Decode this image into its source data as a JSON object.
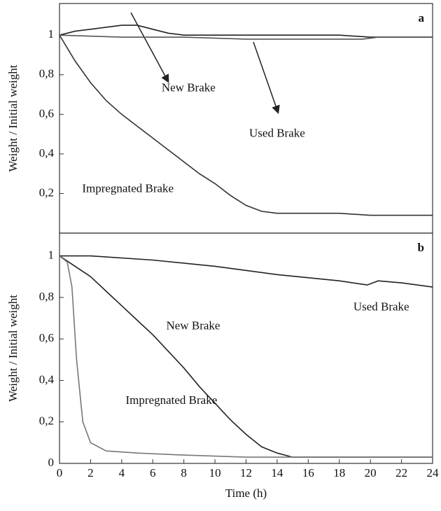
{
  "chart_data": [
    {
      "type": "line",
      "panel": "a",
      "ylabel": "Weight / Initial weight",
      "xlim": [
        0,
        24
      ],
      "ylim": [
        0,
        1.16
      ],
      "yticks": [
        {
          "value": 0.2,
          "label": "0,2"
        },
        {
          "value": 0.4,
          "label": "0,4"
        },
        {
          "value": 0.6,
          "label": "0,6"
        },
        {
          "value": 0.8,
          "label": "0,8"
        },
        1
      ],
      "series": [
        {
          "name": "New Brake",
          "color": "#222222",
          "x": [
            0,
            1,
            2,
            3,
            4,
            5,
            6,
            7,
            8,
            10,
            12,
            14,
            16,
            18,
            20,
            22,
            24
          ],
          "values": [
            1.0,
            1.02,
            1.03,
            1.04,
            1.05,
            1.05,
            1.03,
            1.01,
            1.0,
            1.0,
            1.0,
            1.0,
            1.0,
            1.0,
            0.99,
            0.99,
            0.99
          ]
        },
        {
          "name": "Used Brake",
          "color": "#555555",
          "x": [
            0,
            4,
            8,
            12,
            16,
            19.5,
            20.5,
            24
          ],
          "values": [
            1.0,
            0.99,
            0.99,
            0.98,
            0.98,
            0.98,
            0.99,
            0.99
          ]
        },
        {
          "name": "Impregnated Brake",
          "color": "#333333",
          "x": [
            0,
            1,
            2,
            3,
            4,
            5,
            6,
            7,
            8,
            9,
            10,
            11,
            12,
            13,
            14,
            16,
            18,
            20,
            22,
            24
          ],
          "values": [
            1.0,
            0.87,
            0.76,
            0.67,
            0.6,
            0.54,
            0.48,
            0.42,
            0.36,
            0.3,
            0.25,
            0.19,
            0.14,
            0.11,
            0.1,
            0.1,
            0.1,
            0.09,
            0.09,
            0.09
          ]
        }
      ],
      "annotations": [
        {
          "text": "New Brake",
          "x": 8.3,
          "y": 0.73
        },
        {
          "text": "Used Brake",
          "x": 14,
          "y": 0.5
        },
        {
          "text": "Impregnated Brake",
          "x": 4.4,
          "y": 0.22
        }
      ]
    },
    {
      "type": "line",
      "panel": "b",
      "ylabel": "Weight / Initial weight",
      "xlabel": "Time (h)",
      "xlim": [
        0,
        24
      ],
      "ylim": [
        0,
        1.11
      ],
      "xticks": [
        0,
        2,
        4,
        6,
        8,
        10,
        12,
        14,
        16,
        18,
        20,
        22,
        24
      ],
      "yticks": [
        0,
        {
          "value": 0.2,
          "label": "0,2"
        },
        {
          "value": 0.4,
          "label": "0,4"
        },
        {
          "value": 0.6,
          "label": "0,6"
        },
        {
          "value": 0.8,
          "label": "0,8"
        },
        1
      ],
      "series": [
        {
          "name": "Used Brake",
          "color": "#222222",
          "x": [
            0,
            2,
            6,
            10,
            14,
            18,
            19.8,
            20.5,
            22,
            24
          ],
          "values": [
            1.0,
            1.0,
            0.98,
            0.95,
            0.91,
            0.88,
            0.86,
            0.88,
            0.87,
            0.85
          ]
        },
        {
          "name": "New Brake",
          "color": "#222222",
          "x": [
            0,
            1,
            2,
            3,
            4,
            5,
            6,
            7,
            8,
            9,
            10,
            11,
            12,
            13,
            14,
            15,
            18,
            24
          ],
          "values": [
            1.0,
            0.95,
            0.9,
            0.83,
            0.76,
            0.69,
            0.62,
            0.54,
            0.46,
            0.37,
            0.29,
            0.21,
            0.14,
            0.08,
            0.05,
            0.03,
            0.03,
            0.03
          ]
        },
        {
          "name": "Impregnated Brake",
          "color": "#777777",
          "x": [
            0,
            0.5,
            0.8,
            1.1,
            1.5,
            2,
            3,
            5,
            8,
            12,
            24
          ],
          "values": [
            1.0,
            0.97,
            0.85,
            0.5,
            0.2,
            0.1,
            0.06,
            0.05,
            0.04,
            0.03,
            0.03
          ]
        }
      ],
      "annotations": [
        {
          "text": "Used Brake",
          "x": 20.7,
          "y": 0.75
        },
        {
          "text": "New Brake",
          "x": 8.6,
          "y": 0.66
        },
        {
          "text": "Impregnated Brake",
          "x": 7.2,
          "y": 0.3
        }
      ]
    }
  ]
}
